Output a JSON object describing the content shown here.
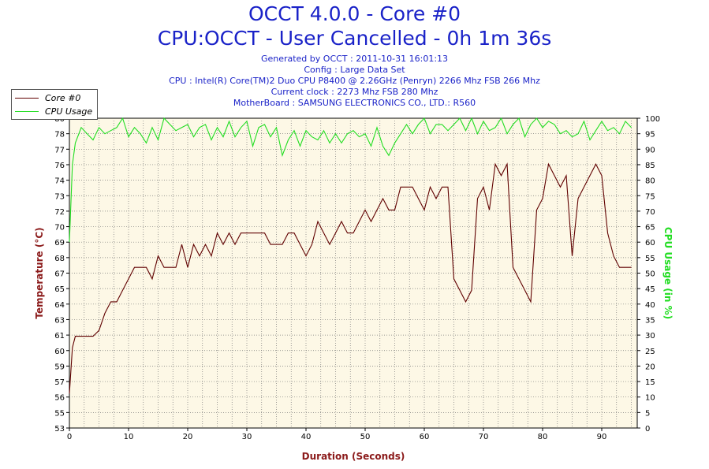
{
  "header": {
    "title_line1": "OCCT 4.0.0 - Core #0",
    "title_line2": "CPU:OCCT - User Cancelled - 0h 1m 36s",
    "generated": "Generated by OCCT : 2011-10-31 16:01:13",
    "config": "Config : Large Data Set",
    "cpu": "CPU : Intel(R) Core(TM)2 Duo CPU P8400 @ 2.26GHz (Penryn) 2266 Mhz FSB 266 Mhz",
    "clock": "Current clock : 2273 Mhz FSB 280 Mhz",
    "motherboard": "MotherBoard : SAMSUNG ELECTRONICS CO., LTD.: R560"
  },
  "legend": {
    "items": [
      {
        "label": "Core #0",
        "color": "#600000"
      },
      {
        "label": "CPU Usage",
        "color": "#22dd22"
      }
    ]
  },
  "chart_data": {
    "type": "line",
    "title": "OCCT 4.0.0 - Core #0",
    "xlabel": "Duration (Seconds)",
    "ylabel": "Temperature (°C)",
    "y2label": "CPU Usage (in %)",
    "xlim": [
      0,
      96
    ],
    "ylim": [
      53,
      80
    ],
    "y2lim": [
      0,
      100
    ],
    "x_ticks": [
      0,
      10,
      20,
      30,
      40,
      50,
      60,
      70,
      80,
      90
    ],
    "y_ticks": [
      "53",
      "55",
      "56",
      "57",
      "59",
      "60",
      "61",
      "63",
      "64",
      "65",
      "67",
      "68",
      "69",
      "70",
      "72",
      "73",
      "74",
      "76",
      "77",
      "78",
      "80"
    ],
    "y2_ticks": [
      0,
      5,
      10,
      15,
      20,
      25,
      30,
      35,
      40,
      45,
      50,
      55,
      60,
      65,
      70,
      75,
      80,
      85,
      90,
      95,
      100
    ],
    "grid": true,
    "series": [
      {
        "name": "Core #0",
        "color": "#600000",
        "axis": "left",
        "x": [
          0,
          0.5,
          1,
          2,
          3,
          4,
          5,
          6,
          7,
          8,
          9,
          10,
          11,
          12,
          13,
          14,
          15,
          16,
          17,
          18,
          19,
          20,
          21,
          22,
          23,
          24,
          25,
          26,
          27,
          28,
          29,
          30,
          31,
          32,
          33,
          34,
          35,
          36,
          37,
          38,
          39,
          40,
          41,
          42,
          43,
          44,
          45,
          46,
          47,
          48,
          49,
          50,
          51,
          52,
          53,
          54,
          55,
          56,
          57,
          58,
          59,
          60,
          61,
          62,
          63,
          64,
          65,
          66,
          67,
          68,
          69,
          70,
          71,
          72,
          73,
          74,
          75,
          76,
          77,
          78,
          79,
          80,
          81,
          82,
          83,
          84,
          85,
          86,
          87,
          88,
          89,
          90,
          91,
          92,
          93,
          94,
          95
        ],
        "values": [
          56,
          60,
          61,
          61,
          61,
          61,
          61.5,
          63,
          64,
          64,
          65,
          66,
          67,
          67,
          67,
          66,
          68,
          67,
          67,
          67,
          69,
          67,
          69,
          68,
          69,
          68,
          70,
          69,
          70,
          69,
          70,
          70,
          70,
          70,
          70,
          69,
          69,
          69,
          70,
          70,
          69,
          68,
          69,
          71,
          70,
          69,
          70,
          71,
          70,
          70,
          71,
          72,
          71,
          72,
          73,
          72,
          72,
          74,
          74,
          74,
          73,
          72,
          74,
          73,
          74,
          74,
          66,
          65,
          64,
          65,
          73,
          74,
          72,
          76,
          75,
          76,
          67,
          66,
          65,
          64,
          72,
          73,
          76,
          75,
          74,
          75,
          68,
          73,
          74,
          75,
          76,
          75,
          70,
          68,
          67,
          67,
          67
        ],
        "note": "values approximate, read off gridlines"
      },
      {
        "name": "CPU Usage",
        "color": "#22dd22",
        "axis": "right",
        "x": [
          0,
          0.5,
          1,
          2,
          3,
          4,
          5,
          6,
          7,
          8,
          9,
          10,
          11,
          12,
          13,
          14,
          15,
          16,
          17,
          18,
          19,
          20,
          21,
          22,
          23,
          24,
          25,
          26,
          27,
          28,
          29,
          30,
          31,
          32,
          33,
          34,
          35,
          36,
          37,
          38,
          39,
          40,
          41,
          42,
          43,
          44,
          45,
          46,
          47,
          48,
          49,
          50,
          51,
          52,
          53,
          54,
          55,
          56,
          57,
          58,
          59,
          60,
          61,
          62,
          63,
          64,
          65,
          66,
          67,
          68,
          69,
          70,
          71,
          72,
          73,
          74,
          75,
          76,
          77,
          78,
          79,
          80,
          81,
          82,
          83,
          84,
          85,
          86,
          87,
          88,
          89,
          90,
          91,
          92,
          93,
          94,
          95
        ],
        "values": [
          60,
          85,
          92,
          97,
          95,
          93,
          97,
          95,
          96,
          97,
          100,
          94,
          97,
          95,
          92,
          97,
          93,
          100,
          98,
          96,
          97,
          98,
          94,
          97,
          98,
          93,
          97,
          94,
          99,
          94,
          97,
          99,
          91,
          97,
          98,
          94,
          97,
          88,
          93,
          96,
          91,
          96,
          94,
          93,
          96,
          92,
          95,
          92,
          95,
          96,
          94,
          95,
          91,
          97,
          91,
          88,
          92,
          95,
          98,
          95,
          98,
          100,
          95,
          98,
          98,
          96,
          98,
          100,
          96,
          100,
          95,
          99,
          96,
          97,
          100,
          95,
          98,
          100,
          94,
          98,
          100,
          97,
          99,
          98,
          95,
          96,
          94,
          95,
          99,
          93,
          96,
          99,
          96,
          97,
          95,
          99,
          97
        ]
      }
    ]
  }
}
